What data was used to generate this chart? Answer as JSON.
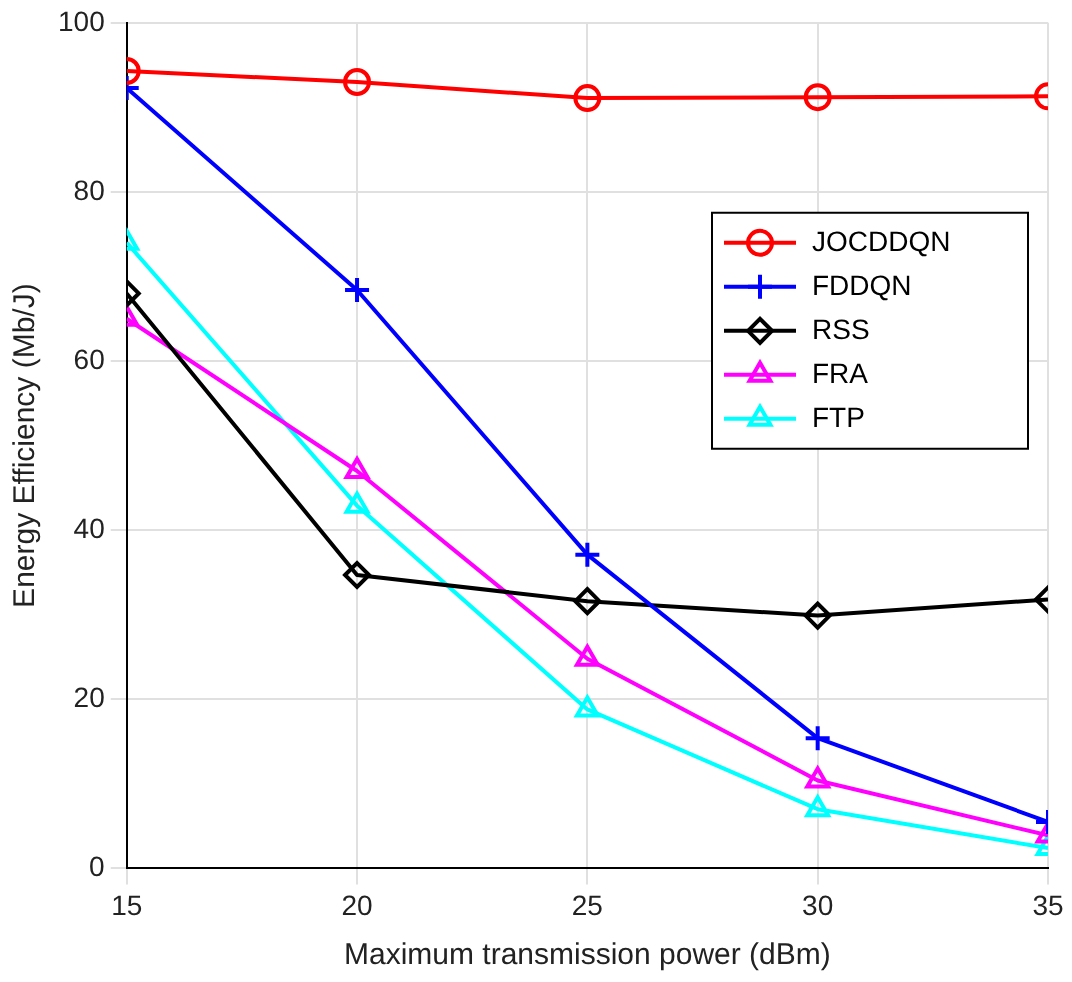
{
  "chart_data": {
    "type": "line",
    "xlabel": "Maximum transmission power (dBm)",
    "ylabel": "Energy Efficiency (Mb/J)",
    "x": [
      15,
      20,
      25,
      30,
      35
    ],
    "xlim": [
      15,
      35
    ],
    "xticks": [
      15,
      20,
      25,
      30,
      35
    ],
    "ylim": [
      0,
      100
    ],
    "yticks": [
      0,
      20,
      40,
      60,
      80,
      100
    ],
    "grid": true,
    "legend": "top right",
    "line_style": "solid",
    "series": [
      {
        "name": "JOCDDQN",
        "color": "#ff0000",
        "marker": "circle",
        "values": [
          94.3,
          93,
          91.1,
          91.2,
          91.3
        ]
      },
      {
        "name": "FDDQN",
        "color": "#0000ff",
        "marker": "cross",
        "values": [
          92.3,
          68.4,
          37.1,
          15.4,
          5.5
        ]
      },
      {
        "name": "RSS",
        "color": "#000000",
        "marker": "diamond",
        "values": [
          68,
          34.7,
          31.6,
          29.9,
          31.8
        ]
      },
      {
        "name": "FRA",
        "color": "#ff00ff",
        "marker": "triangle",
        "values": [
          65,
          47,
          24.8,
          10.4,
          3.9
        ]
      },
      {
        "name": "FTP",
        "color": "#00ffff",
        "marker": "triangle",
        "values": [
          74,
          42.9,
          18.8,
          7,
          2.4
        ]
      }
    ]
  }
}
